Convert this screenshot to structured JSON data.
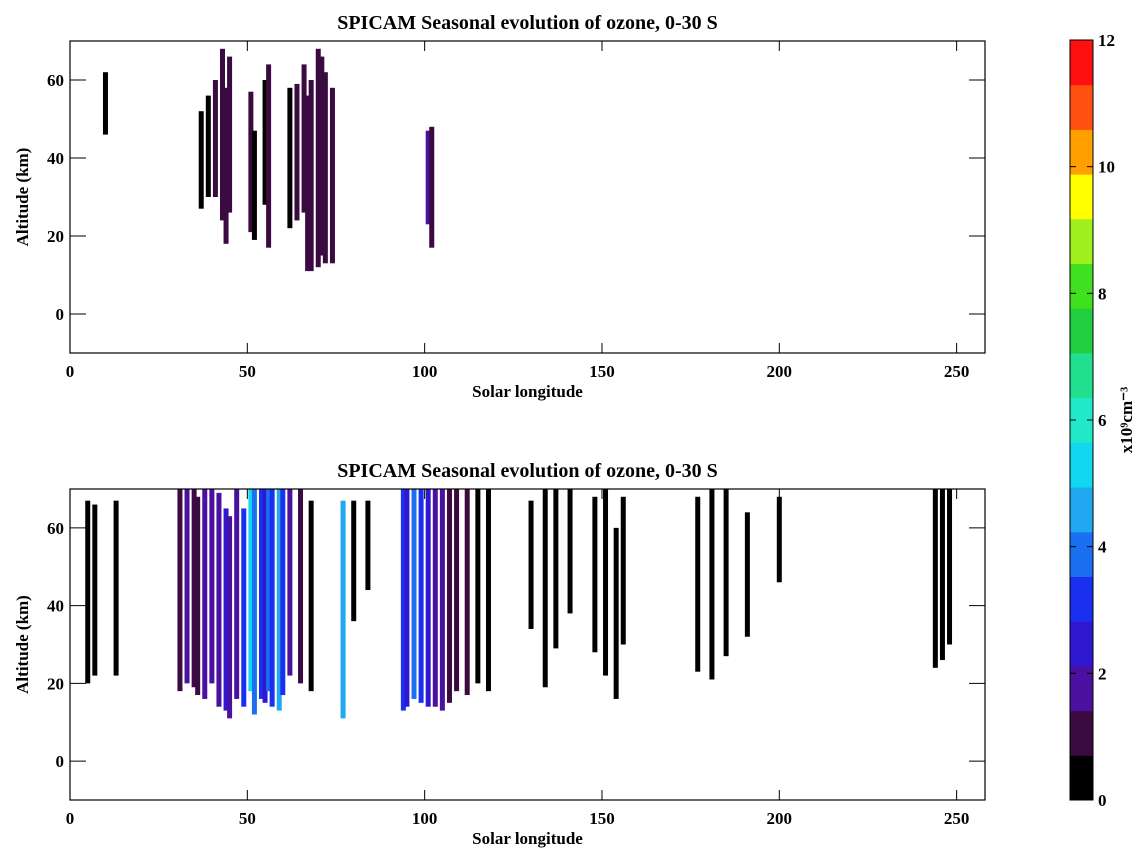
{
  "chart_data": [
    {
      "type": "heatmap",
      "title": "SPICAM Seasonal evolution of ozone, 0-30 S",
      "xlabel": "Solar longitude",
      "ylabel": "Altitude (km)",
      "xlim": [
        0,
        258
      ],
      "ylim": [
        -10,
        70
      ],
      "xticks": [
        0,
        50,
        100,
        150,
        200,
        250
      ],
      "yticks": [
        0,
        20,
        40,
        60
      ],
      "x": [
        10,
        37,
        39,
        41,
        43,
        44,
        45,
        51,
        52,
        55,
        56,
        62,
        64,
        66,
        67,
        68,
        70,
        71,
        72,
        74,
        101,
        102
      ],
      "ymin": [
        46,
        27,
        30,
        30,
        24,
        18,
        26,
        21,
        19,
        28,
        17,
        22,
        24,
        26,
        11,
        11,
        12,
        15,
        13,
        13,
        23,
        17
      ],
      "ymax": [
        62,
        52,
        56,
        60,
        68,
        58,
        66,
        57,
        47,
        60,
        64,
        58,
        59,
        64,
        56,
        60,
        68,
        66,
        62,
        58,
        47,
        48
      ],
      "values": [
        0.3,
        0.5,
        0.6,
        1.0,
        1.2,
        1.3,
        0.8,
        0.8,
        0.6,
        0.7,
        1.2,
        0.6,
        1.0,
        1.3,
        1.0,
        1.2,
        1.3,
        1.4,
        1.2,
        1.4,
        1.5,
        1.3
      ]
    },
    {
      "type": "heatmap",
      "title": "SPICAM Seasonal evolution of ozone, 0-30 S",
      "xlabel": "Solar longitude",
      "ylabel": "Altitude (km)",
      "xlim": [
        0,
        258
      ],
      "ylim": [
        -10,
        70
      ],
      "xticks": [
        0,
        50,
        100,
        150,
        200,
        250
      ],
      "yticks": [
        0,
        20,
        40,
        60
      ],
      "x": [
        5,
        7,
        13,
        31,
        33,
        35,
        36,
        38,
        40,
        42,
        44,
        45,
        47,
        49,
        51,
        52,
        54,
        55,
        56,
        57,
        59,
        60,
        62,
        65,
        68,
        77,
        80,
        84,
        94,
        95,
        97,
        99,
        101,
        103,
        105,
        107,
        109,
        112,
        115,
        118,
        130,
        134,
        137,
        141,
        148,
        151,
        154,
        156,
        177,
        181,
        185,
        191,
        200,
        244,
        246,
        248
      ],
      "ymin": [
        20,
        22,
        22,
        18,
        20,
        19,
        17,
        16,
        20,
        14,
        13,
        11,
        16,
        14,
        18,
        12,
        16,
        15,
        18,
        14,
        13,
        17,
        22,
        20,
        18,
        11,
        36,
        44,
        13,
        14,
        16,
        15,
        14,
        14,
        13,
        15,
        18,
        17,
        20,
        18,
        34,
        19,
        29,
        38,
        28,
        22,
        16,
        30,
        23,
        21,
        27,
        32,
        46,
        24,
        26,
        30
      ],
      "ymax": [
        67,
        66,
        67,
        70,
        70,
        70,
        68,
        70,
        70,
        69,
        65,
        63,
        70,
        65,
        70,
        70,
        70,
        70,
        70,
        70,
        70,
        70,
        70,
        70,
        67,
        67,
        67,
        67,
        70,
        70,
        70,
        70,
        70,
        70,
        70,
        70,
        70,
        70,
        70,
        70,
        67,
        70,
        70,
        70,
        68,
        70,
        60,
        68,
        68,
        70,
        70,
        64,
        68,
        70,
        70,
        70
      ],
      "values": [
        0.2,
        0.2,
        0.2,
        1.0,
        1.5,
        1.2,
        1.3,
        1.5,
        2.0,
        1.8,
        2.5,
        1.5,
        2.0,
        3.0,
        5.5,
        4.0,
        3.0,
        2.5,
        4.0,
        3.5,
        4.5,
        3.0,
        1.5,
        0.8,
        0.5,
        4.5,
        0.2,
        0.2,
        3.0,
        2.5,
        4.0,
        3.0,
        2.5,
        2.0,
        1.5,
        1.2,
        1.0,
        0.8,
        0.5,
        0.4,
        0.2,
        0.2,
        0.2,
        0.2,
        0.2,
        0.2,
        0.2,
        0.2,
        0.2,
        0.2,
        0.2,
        0.2,
        0.2,
        0.3,
        0.3,
        0.3
      ]
    }
  ],
  "colorbar": {
    "label": "x10⁹cm⁻³",
    "range": [
      0,
      12
    ],
    "ticks": [
      0,
      2,
      4,
      6,
      8,
      10,
      12
    ],
    "colors": [
      "#000000",
      "#3a0a40",
      "#4a10a0",
      "#3018d0",
      "#1a30f0",
      "#1a70f0",
      "#20a8f0",
      "#10d8f0",
      "#20e8c8",
      "#20e090",
      "#20d040",
      "#40e020",
      "#a0f020",
      "#ffff00",
      "#ffa000",
      "#ff5010",
      "#ff1010"
    ]
  }
}
